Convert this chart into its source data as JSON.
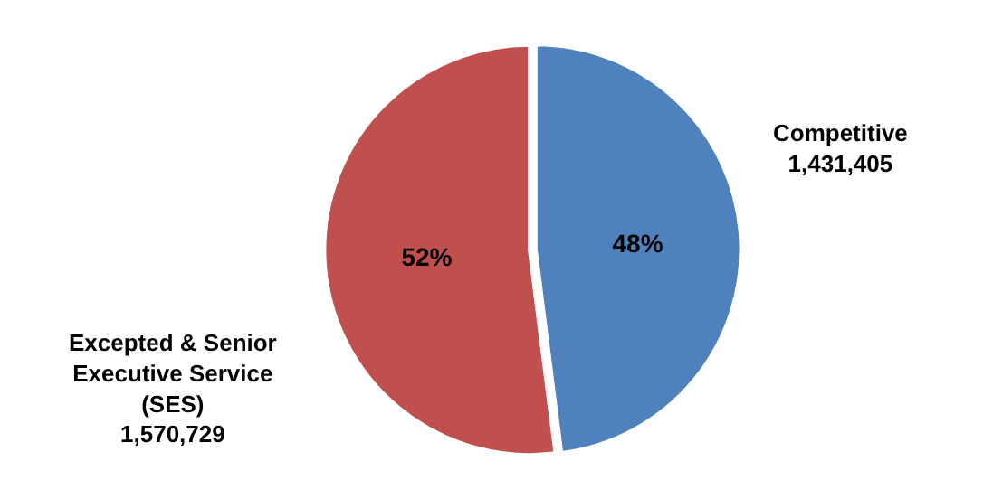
{
  "chart_data": {
    "type": "pie",
    "categories": [
      "Competitive",
      "Excepted & Senior Executive Service (SES)"
    ],
    "values": [
      48,
      52
    ],
    "value_labels": [
      "48%",
      "52%"
    ],
    "annotations": [
      "1,431,405",
      "1,570,729"
    ],
    "colors": [
      "#4f81bd",
      "#c0504d"
    ],
    "legend": false
  }
}
